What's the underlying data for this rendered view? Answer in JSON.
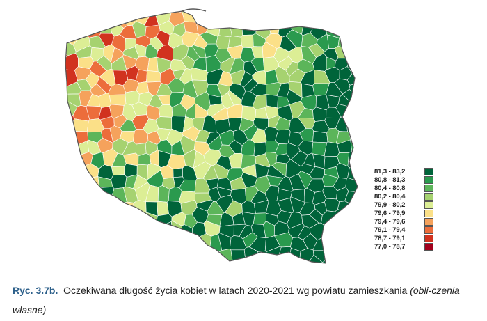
{
  "legend": {
    "colors": [
      "#00643a",
      "#2a9a4e",
      "#5cb55a",
      "#a6d270",
      "#dcee95",
      "#fbe088",
      "#f5a25c",
      "#ec6d3b",
      "#d1321f",
      "#a3001d"
    ],
    "items": [
      {
        "label": "81,3  -  83,2",
        "color": "#00643a"
      },
      {
        "label": "80,8  -  81,3",
        "color": "#2a9a4e"
      },
      {
        "label": "80,4  -  80,8",
        "color": "#5cb55a"
      },
      {
        "label": "80,2  -  80,4",
        "color": "#a6d270"
      },
      {
        "label": "79,9  -  80,2",
        "color": "#dcee95"
      },
      {
        "label": "79,6  -  79,9",
        "color": "#fbe088"
      },
      {
        "label": "79,4  -  79,6",
        "color": "#f5a25c"
      },
      {
        "label": "79,1  -  79,4",
        "color": "#ec6d3b"
      },
      {
        "label": "78,7  -  79,1",
        "color": "#d1321f"
      },
      {
        "label": "77,0  -  78,7",
        "color": "#a3001d"
      }
    ]
  },
  "caption": {
    "label": "Ryc. 3.7b.",
    "text": "Oczekiwana długość życia kobiet w latach 2020-2021 wg powiatu zamieszkania",
    "note": "(obli-czenia własne)"
  }
}
